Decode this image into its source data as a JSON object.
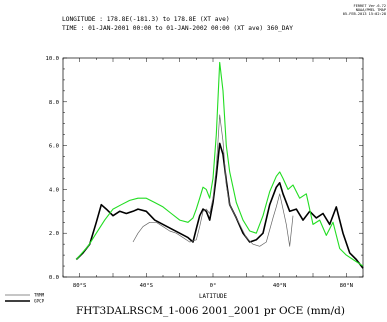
{
  "header": {
    "longitude_line": "LONGITUDE : 178.8E(-181.3) to 178.8E (XT ave)",
    "time_line": "TIME : 01-JAN-2001 00:00 to 01-JAN-2002 00:00 (XT ave) 360_DAY"
  },
  "stamp": {
    "line1": "FERRET Ver.6.72",
    "line2": "NOAA/PMEL TMAP",
    "line3": "05-FEB-2013 15:02:28"
  },
  "caption": "FHT3DALRSCM_1-006 2001_2001 pr OCE (mm/d)",
  "colors": {
    "TRMM": "#666666",
    "GPCP": "#000000",
    "model": "#22dd22"
  },
  "chart_data": {
    "type": "line",
    "title": "",
    "xlabel": "LATITUDE",
    "ylabel": "",
    "xlim": [
      -90,
      90
    ],
    "ylim": [
      0,
      10
    ],
    "x_tick_values": [
      -80,
      -40,
      0,
      40,
      80
    ],
    "x_tick_labels": [
      "80°S",
      "40°S",
      "0°",
      "40°N",
      "80°N"
    ],
    "y_tick_values": [
      0,
      2,
      4,
      6,
      8,
      10
    ],
    "y_tick_labels": [
      "0.0",
      "2.0",
      "4.0",
      "6.0",
      "8.0",
      "10.0"
    ],
    "grid": false,
    "legend": "bottom-left, below plot",
    "series": [
      {
        "name": "",
        "key": "model",
        "x": [
          -82,
          -75,
          -70,
          -65,
          -60,
          -55,
          -50,
          -45,
          -40,
          -35,
          -30,
          -25,
          -20,
          -15,
          -12,
          -10,
          -8,
          -6,
          -4,
          -2,
          0,
          2,
          4,
          6,
          8,
          10,
          14,
          18,
          22,
          26,
          30,
          34,
          38,
          40,
          42,
          45,
          48,
          52,
          56,
          60,
          64,
          68,
          72,
          76,
          80,
          84,
          90
        ],
        "y": [
          0.8,
          1.4,
          2.0,
          2.6,
          3.1,
          3.3,
          3.5,
          3.6,
          3.6,
          3.4,
          3.2,
          2.9,
          2.6,
          2.5,
          2.7,
          3.1,
          3.6,
          4.1,
          4.0,
          3.6,
          4.5,
          6.5,
          9.8,
          8.5,
          6.0,
          4.8,
          3.4,
          2.6,
          2.1,
          2.0,
          2.8,
          3.9,
          4.6,
          4.8,
          4.5,
          4.0,
          4.2,
          3.6,
          3.8,
          2.4,
          2.6,
          1.9,
          2.5,
          1.3,
          1.0,
          0.8,
          0.5
        ]
      },
      {
        "name": "GPCP",
        "key": "GPCP",
        "x": [
          -82,
          -78,
          -74,
          -70,
          -67,
          -64,
          -60,
          -56,
          -52,
          -48,
          -45,
          -40,
          -35,
          -30,
          -25,
          -20,
          -15,
          -12,
          -10,
          -8,
          -6,
          -4,
          -2,
          0,
          2,
          4,
          6,
          8,
          10,
          14,
          18,
          22,
          26,
          30,
          34,
          38,
          40,
          42,
          46,
          50,
          54,
          58,
          62,
          66,
          70,
          74,
          78,
          82,
          86,
          90
        ],
        "y": [
          0.8,
          1.1,
          1.5,
          2.5,
          3.3,
          3.1,
          2.8,
          3.0,
          2.9,
          3.0,
          3.1,
          3.0,
          2.6,
          2.4,
          2.2,
          2.0,
          1.8,
          1.6,
          2.2,
          2.8,
          3.1,
          3.0,
          2.6,
          3.4,
          4.6,
          6.1,
          5.6,
          4.4,
          3.3,
          2.7,
          2.0,
          1.6,
          1.7,
          2.0,
          3.3,
          4.1,
          4.3,
          3.8,
          3.0,
          3.1,
          2.6,
          3.0,
          2.7,
          2.9,
          2.4,
          3.2,
          2.0,
          1.1,
          0.8,
          0.4
        ]
      },
      {
        "name": "TRMM",
        "key": "TRMM",
        "x": [
          -48,
          -45,
          -42,
          -38,
          -34,
          -30,
          -26,
          -22,
          -18,
          -14,
          -10,
          -8,
          -6,
          -4,
          -2,
          0,
          2,
          4,
          6,
          8,
          10,
          12,
          14,
          16,
          18,
          20,
          24,
          28,
          32,
          36,
          38,
          40,
          42,
          44,
          46,
          48
        ],
        "y": [
          1.6,
          2.0,
          2.3,
          2.5,
          2.5,
          2.3,
          2.1,
          2.0,
          1.8,
          1.6,
          1.7,
          2.3,
          3.0,
          3.1,
          2.9,
          3.6,
          5.0,
          7.4,
          6.2,
          4.2,
          3.3,
          3.0,
          2.7,
          2.4,
          2.1,
          1.8,
          1.5,
          1.4,
          1.6,
          2.7,
          3.2,
          3.8,
          3.1,
          2.4,
          1.4,
          2.8
        ]
      }
    ]
  }
}
